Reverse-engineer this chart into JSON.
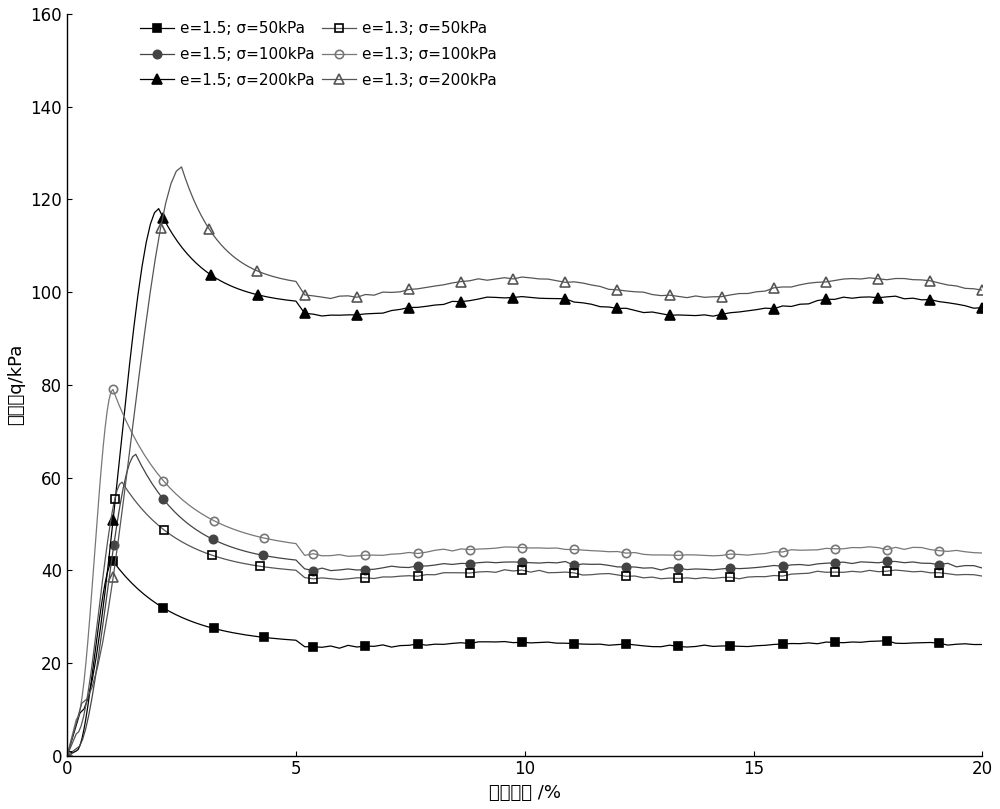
{
  "title": "",
  "xlabel": "轴向应变 /%",
  "ylabel": "偏应力q/kPa",
  "xlim": [
    0,
    20
  ],
  "ylim": [
    0,
    160
  ],
  "xticks": [
    0,
    5,
    10,
    15,
    20
  ],
  "yticks": [
    0,
    20,
    40,
    60,
    80,
    100,
    120,
    140,
    160
  ],
  "series": [
    {
      "label": "e=1.5; σ=50kPa",
      "color": "#000000",
      "line_color": "#000000",
      "marker": "s",
      "fillstyle": "full",
      "markersize": 6,
      "peak_x": 1.0,
      "peak_y": 42,
      "residual_y": 24,
      "rise_start": 0.5,
      "rise_y": 10
    },
    {
      "label": "e=1.5; σ=100kPa",
      "color": "#444444",
      "line_color": "#444444",
      "marker": "o",
      "fillstyle": "full",
      "markersize": 6,
      "peak_x": 1.5,
      "peak_y": 65,
      "residual_y": 41,
      "rise_start": 0.5,
      "rise_y": 15
    },
    {
      "label": "e=1.5; σ=200kPa",
      "color": "#000000",
      "line_color": "#000000",
      "marker": "^",
      "fillstyle": "full",
      "markersize": 7,
      "peak_x": 2.0,
      "peak_y": 118,
      "residual_y": 97,
      "rise_start": 0.7,
      "rise_y": 92
    },
    {
      "label": "e=1.3; σ=50kPa",
      "color": "#000000",
      "line_color": "#555555",
      "marker": "s",
      "fillstyle": "none",
      "markersize": 6,
      "peak_x": 1.2,
      "peak_y": 59,
      "residual_y": 39,
      "rise_start": 0.5,
      "rise_y": 47
    },
    {
      "label": "e=1.3; σ=100kPa",
      "color": "#777777",
      "line_color": "#777777",
      "marker": "o",
      "fillstyle": "none",
      "markersize": 6,
      "peak_x": 1.0,
      "peak_y": 79,
      "residual_y": 44,
      "rise_start": 0.5,
      "rise_y": 78
    },
    {
      "label": "e=1.3; σ=200kPa",
      "color": "#555555",
      "line_color": "#555555",
      "marker": "^",
      "fillstyle": "none",
      "markersize": 7,
      "peak_x": 2.5,
      "peak_y": 127,
      "residual_y": 101,
      "rise_start": 0.8,
      "rise_y": 113
    }
  ],
  "background_color": "#ffffff",
  "font_size": 12,
  "label_fontsize": 13
}
